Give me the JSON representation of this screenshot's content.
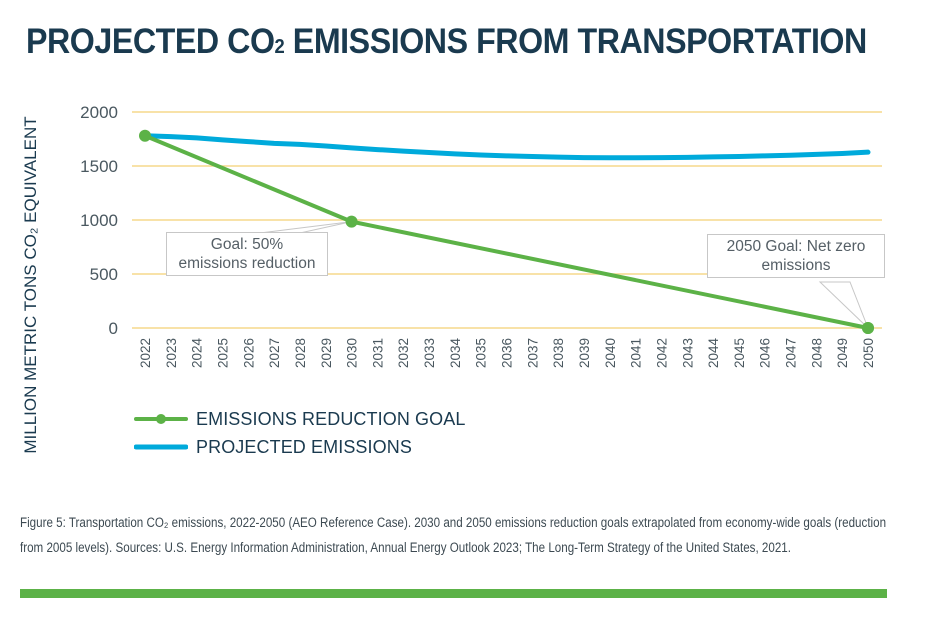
{
  "title": {
    "main": "PROJECTED CO",
    "subscript": "2",
    "rest": " EMISSIONS FROM TRANSPORTATION"
  },
  "ylabel_text": "MILLION METRIC TONS CO₂ EQUIVALENT",
  "caption": "Figure 5: Transportation CO₂ emissions, 2022-2050 (AEO Reference Case). 2030 and 2050 emissions reduction goals extrapolated from economy-wide goals (reduction from 2005 levels). Sources: U.S. Energy Information Administration, Annual Energy Outlook 2023; The Long-Term Strategy of the United States, 2021.",
  "colors": {
    "goal": "#5cb247",
    "projected": "#00aadb",
    "grid": "#f5d98c",
    "title": "#1a3a4f",
    "footer_bar": "#5cb247"
  },
  "chart_data": {
    "type": "line",
    "title": "PROJECTED CO₂ EMISSIONS FROM TRANSPORTATION",
    "xlabel": "",
    "ylabel": "MILLION METRIC TONS CO₂ EQUIVALENT",
    "x": [
      2022,
      2023,
      2024,
      2025,
      2026,
      2027,
      2028,
      2029,
      2030,
      2031,
      2032,
      2033,
      2034,
      2035,
      2036,
      2037,
      2038,
      2039,
      2040,
      2041,
      2042,
      2043,
      2044,
      2045,
      2046,
      2047,
      2048,
      2049,
      2050
    ],
    "xticks": [
      "2022",
      "2023",
      "2024",
      "2025",
      "2026",
      "2027",
      "2028",
      "2029",
      "2030",
      "2031",
      "2032",
      "2033",
      "2034",
      "2035",
      "2036",
      "2037",
      "2038",
      "2039",
      "2040",
      "2041",
      "2042",
      "2043",
      "2044",
      "2045",
      "2046",
      "2047",
      "2048",
      "2049",
      "2050"
    ],
    "ylim": [
      0,
      2000
    ],
    "yticks": [
      0,
      500,
      1000,
      1500,
      2000
    ],
    "ytick_labels": [
      "0",
      "500",
      "1000",
      "1500",
      "2000"
    ],
    "grid": true,
    "legend_position": "bottom-left",
    "series": [
      {
        "name": "EMISSIONS REDUCTION GOAL",
        "marker": "circle",
        "points": [
          [
            2022,
            1780
          ],
          [
            2030,
            985
          ],
          [
            2050,
            0
          ]
        ]
      },
      {
        "name": "PROJECTED EMISSIONS",
        "marker": "none",
        "values": [
          1780,
          1772,
          1760,
          1742,
          1726,
          1710,
          1700,
          1685,
          1668,
          1652,
          1638,
          1625,
          1612,
          1602,
          1594,
          1588,
          1582,
          1578,
          1576,
          1576,
          1578,
          1580,
          1584,
          1588,
          1594,
          1600,
          1608,
          1616,
          1628
        ]
      }
    ],
    "annotations": [
      {
        "text_line1": "Goal: 50%",
        "text_line2": "emissions reduction",
        "x": 2030,
        "y": 985
      },
      {
        "text_line1": "2050 Goal: Net zero",
        "text_line2": "emissions",
        "x": 2050,
        "y": 0
      }
    ]
  }
}
